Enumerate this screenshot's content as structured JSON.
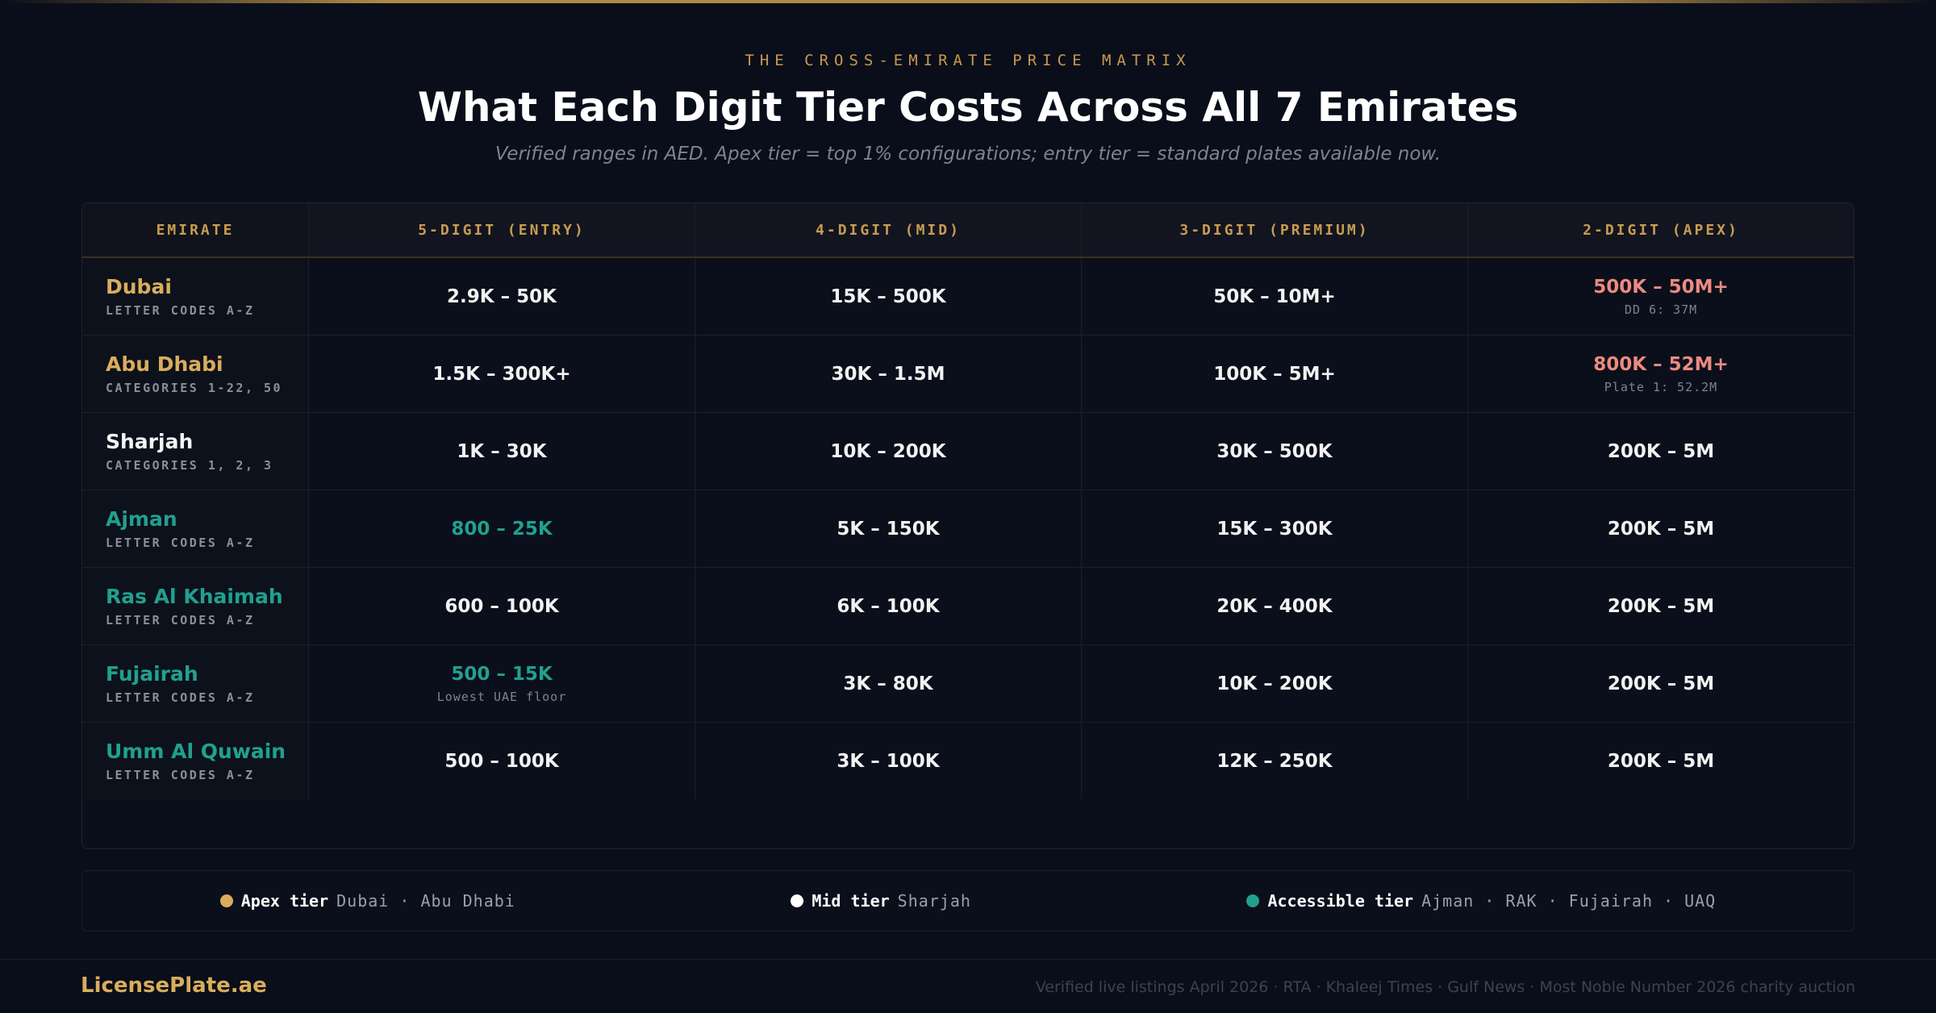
{
  "header": {
    "eyebrow": "THE CROSS-EMIRATE PRICE MATRIX",
    "title": "What Each Digit Tier Costs Across All 7 Emirates",
    "subtitle": "Verified ranges in AED. Apex tier = top 1% configurations; entry tier = standard plates available now."
  },
  "table": {
    "columns": [
      "EMIRATE",
      "5-DIGIT (ENTRY)",
      "4-DIGIT (MID)",
      "3-DIGIT (PREMIUM)",
      "2-DIGIT (APEX)"
    ],
    "rows": [
      {
        "name": "Dubai",
        "sub": "LETTER CODES A-Z",
        "color": "#d9ad5b",
        "cells": [
          {
            "text": "2.9K – 50K"
          },
          {
            "text": "15K – 500K"
          },
          {
            "text": "50K – 10M+"
          },
          {
            "text": "500K – 50M+",
            "note": "DD 6: 37M",
            "color": "#ec8a80"
          }
        ]
      },
      {
        "name": "Abu Dhabi",
        "sub": "CATEGORIES 1-22, 50",
        "color": "#d9ad5b",
        "cells": [
          {
            "text": "1.5K – 300K+"
          },
          {
            "text": "30K – 1.5M"
          },
          {
            "text": "100K – 5M+"
          },
          {
            "text": "800K – 52M+",
            "note": "Plate 1: 52.2M",
            "color": "#ec8a80"
          }
        ]
      },
      {
        "name": "Sharjah",
        "sub": "CATEGORIES 1, 2, 3",
        "color": "#f4f4f4",
        "cells": [
          {
            "text": "1K – 30K"
          },
          {
            "text": "10K – 200K"
          },
          {
            "text": "30K – 500K"
          },
          {
            "text": "200K – 5M"
          }
        ]
      },
      {
        "name": "Ajman",
        "sub": "LETTER CODES A-Z",
        "color": "#21a08f",
        "cells": [
          {
            "text": "800 – 25K",
            "color": "#21a08f"
          },
          {
            "text": "5K – 150K"
          },
          {
            "text": "15K – 300K"
          },
          {
            "text": "200K – 5M"
          }
        ]
      },
      {
        "name": "Ras Al Khaimah",
        "sub": "LETTER CODES A-Z",
        "color": "#21a08f",
        "cells": [
          {
            "text": "600 – 100K"
          },
          {
            "text": "6K – 100K"
          },
          {
            "text": "20K – 400K"
          },
          {
            "text": "200K – 5M"
          }
        ]
      },
      {
        "name": "Fujairah",
        "sub": "LETTER CODES A-Z",
        "color": "#21a08f",
        "cells": [
          {
            "text": "500 – 15K",
            "note": "Lowest UAE floor",
            "color": "#21a08f"
          },
          {
            "text": "3K – 80K"
          },
          {
            "text": "10K – 200K"
          },
          {
            "text": "200K – 5M"
          }
        ]
      },
      {
        "name": "Umm Al Quwain",
        "sub": "LETTER CODES A-Z",
        "color": "#21a08f",
        "cells": [
          {
            "text": "500 – 100K"
          },
          {
            "text": "3K – 100K"
          },
          {
            "text": "12K – 250K"
          },
          {
            "text": "200K – 5M"
          }
        ]
      }
    ]
  },
  "legend": [
    {
      "label": "Apex tier",
      "members": "Dubai · Abu Dhabi",
      "color": "#d9ad5b"
    },
    {
      "label": "Mid tier",
      "members": "Sharjah",
      "color": "#ffffff"
    },
    {
      "label": "Accessible tier",
      "members": "Ajman · RAK · Fujairah · UAQ",
      "color": "#21a08f"
    }
  ],
  "footer": {
    "brand": "LicensePlate.ae",
    "sources": "Verified live listings April 2026 · RTA · Khaleej Times · Gulf News · Most Noble Number 2026 charity auction"
  }
}
